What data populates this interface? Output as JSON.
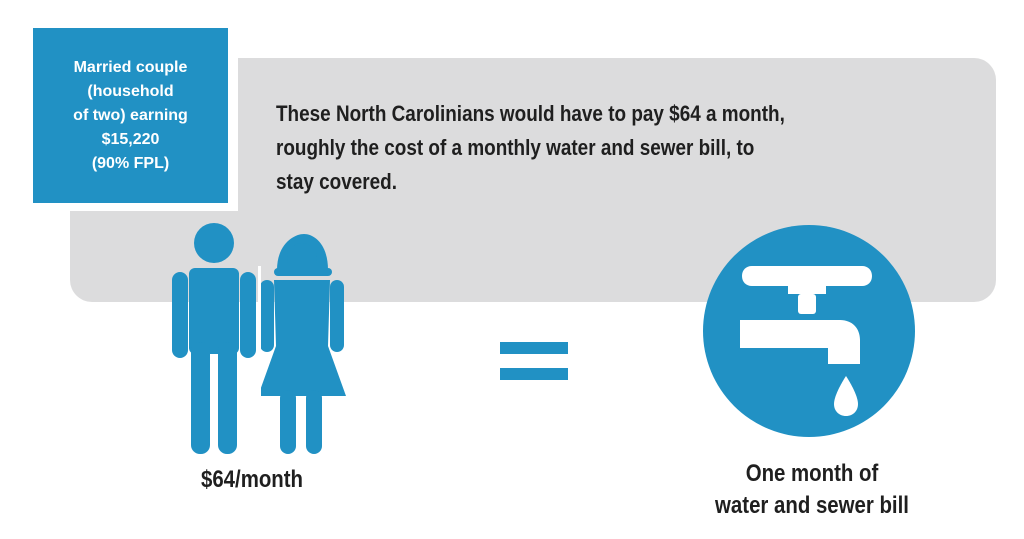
{
  "colors": {
    "accent": "#2191c4",
    "panel": "#dcdcdd",
    "text": "#1f1f1f"
  },
  "info_box": {
    "lines": [
      "Married couple",
      "(household",
      "of two) earning",
      "$15,220",
      "(90% FPL)"
    ]
  },
  "headline": {
    "lines": [
      "These North Carolinians would have to pay $64 a month,",
      "roughly the cost of a monthly water and sewer bill, to",
      "stay covered."
    ]
  },
  "icons": {
    "couple": "married-couple-icon",
    "equals": "equals-icon",
    "faucet": "water-faucet-icon"
  },
  "price_label": "$64/month",
  "faucet_caption": {
    "lines": [
      "One month of",
      "water and sewer bill"
    ]
  }
}
